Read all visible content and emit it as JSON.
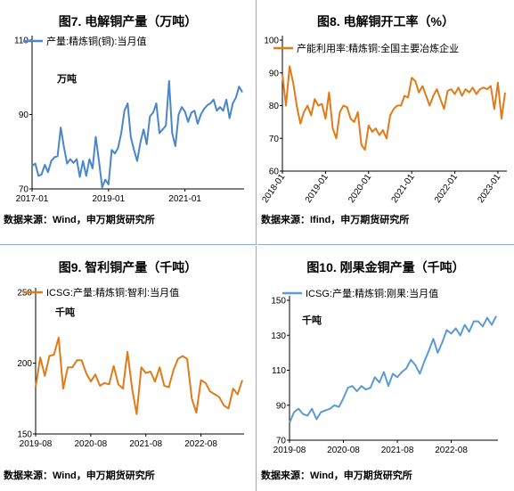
{
  "charts": [
    {
      "title": "图7. 电解铜产量（万吨）",
      "source": "数据来源：Wind，申万期货研究所",
      "chart_data": {
        "type": "line",
        "title": "图7. 电解铜产量（万吨）",
        "unit_label": "万吨",
        "series": [
          {
            "name": "产量:精炼铜(铜):当月值",
            "color": "#4a86c8",
            "values": [
              76.2,
              76.8,
              73.5,
              73.9,
              76.5,
              74.5,
              77.5,
              78.5,
              78.8,
              86.5,
              81.2,
              76.8,
              78.0,
              77.0,
              78.0,
              73.2,
              77.5,
              73.5,
              78.0,
              75.5,
              84.0,
              77.5,
              70.4,
              72.5,
              71.2,
              80.5,
              79.5,
              81.0,
              85.0,
              91.0,
              93.0,
              84.0,
              80.5,
              77.5,
              82.5,
              86.0,
              82.0,
              89.5,
              90.5,
              93.0,
              85.0,
              86.0,
              87.0,
              99.0,
              85.0,
              81.5,
              90.0,
              92.0,
              90.8,
              88.0,
              90.5,
              91.0,
              87.5,
              90.0,
              91.5,
              92.5,
              93.0,
              94.0,
              91.0,
              92.0,
              91.0,
              94.0,
              89.0,
              93.0,
              94.5,
              97.5,
              96.0
            ]
          }
        ],
        "x_tick_labels": [
          "2017-01",
          "2019-01",
          "2021-01"
        ],
        "y_ticks": [
          70,
          90,
          110
        ],
        "ylim": [
          70,
          110
        ]
      }
    },
    {
      "title": "图8. 电解铜开工率（%）",
      "source": "数据来源：Ifind，申万期货研究所",
      "chart_data": {
        "type": "line",
        "title": "图8. 电解铜开工率（%）",
        "series": [
          {
            "name": "产能利用率:精炼铜:全国主要冶炼企业",
            "color": "#e07b1a",
            "values": [
              89.5,
              80.0,
              92.0,
              87.0,
              80.0,
              74.5,
              78.0,
              80.0,
              77.0,
              82.0,
              80.0,
              80.5,
              76.0,
              84.0,
              73.0,
              70.0,
              78.0,
              80.0,
              79.5,
              76.0,
              75.0,
              78.0,
              68.0,
              66.5,
              74.0,
              72.0,
              73.0,
              71.0,
              72.5,
              70.0,
              77.0,
              79.0,
              80.0,
              80.0,
              83.0,
              82.5,
              88.5,
              87.5,
              84.0,
              86.0,
              83.0,
              80.0,
              83.0,
              85.0,
              82.0,
              79.0,
              84.5,
              85.0,
              83.5,
              85.5,
              83.0,
              85.0,
              84.0,
              85.5,
              83.5,
              85.0,
              85.5,
              85.0,
              86.0,
              79.0,
              87.0,
              76.0,
              84.0
            ]
          }
        ],
        "x_tick_labels": [
          "2018-01",
          "2019-01",
          "2020-01",
          "2021-01",
          "2022-01",
          "2023-01"
        ],
        "y_ticks": [
          60,
          70,
          80,
          90,
          100
        ],
        "ylim": [
          60,
          100
        ]
      }
    },
    {
      "title": "图9. 智利铜产量（千吨）",
      "source": "数据来源：Wind，申万期货研究所",
      "chart_data": {
        "type": "line",
        "title": "图9. 智利铜产量（千吨）",
        "unit_label": "千吨",
        "series": [
          {
            "name": "ICSG:产量:精炼铜:智利:当月值",
            "color": "#e07b1a",
            "values": [
              183,
              204,
              191,
              205,
              206,
              218,
              182,
              197,
              197,
              202,
              202,
              193,
              187,
              192,
              184,
              186,
              185,
              198,
              185,
              182,
              208,
              182,
              164,
              197,
              193,
              194,
              187,
              197,
              184,
              183,
              195,
              203,
              205,
              203,
              175,
              165,
              188,
              186,
              180,
              178,
              176,
              170,
              168,
              182,
              178,
              188
            ]
          }
        ],
        "x_tick_labels": [
          "2019-08",
          "2020-08",
          "2021-08",
          "2022-08"
        ],
        "y_ticks": [
          150,
          200,
          250
        ],
        "ylim": [
          150,
          250
        ]
      }
    },
    {
      "title": "图10. 刚果金铜产量（千吨）",
      "source": "数据来源：Wind，申万期货研究所",
      "chart_data": {
        "type": "line",
        "title": "图10. 刚果金铜产量（千吨）",
        "unit_label": "千吨",
        "series": [
          {
            "name": "ICSG:产量:精炼铜:刚果:当月值",
            "color": "#5b9bd5",
            "values": [
              80,
              86,
              88,
              85,
              84,
              88,
              82,
              86,
              87,
              88,
              90,
              89,
              94,
              100,
              101,
              98,
              101,
              99,
              100,
              106,
              103,
              109,
              101,
              108,
              106,
              109,
              111,
              116,
              113,
              108,
              115,
              121,
              128,
              120,
              126,
              133,
              131,
              134,
              130,
              136,
              132,
              138,
              138,
              135,
              140,
              136,
              141
            ]
          }
        ],
        "x_tick_labels": [
          "2019-08",
          "2020-08",
          "2021-08",
          "2022-08"
        ],
        "y_ticks": [
          70,
          90,
          110,
          130,
          150
        ],
        "ylim": [
          70,
          150
        ]
      }
    }
  ]
}
